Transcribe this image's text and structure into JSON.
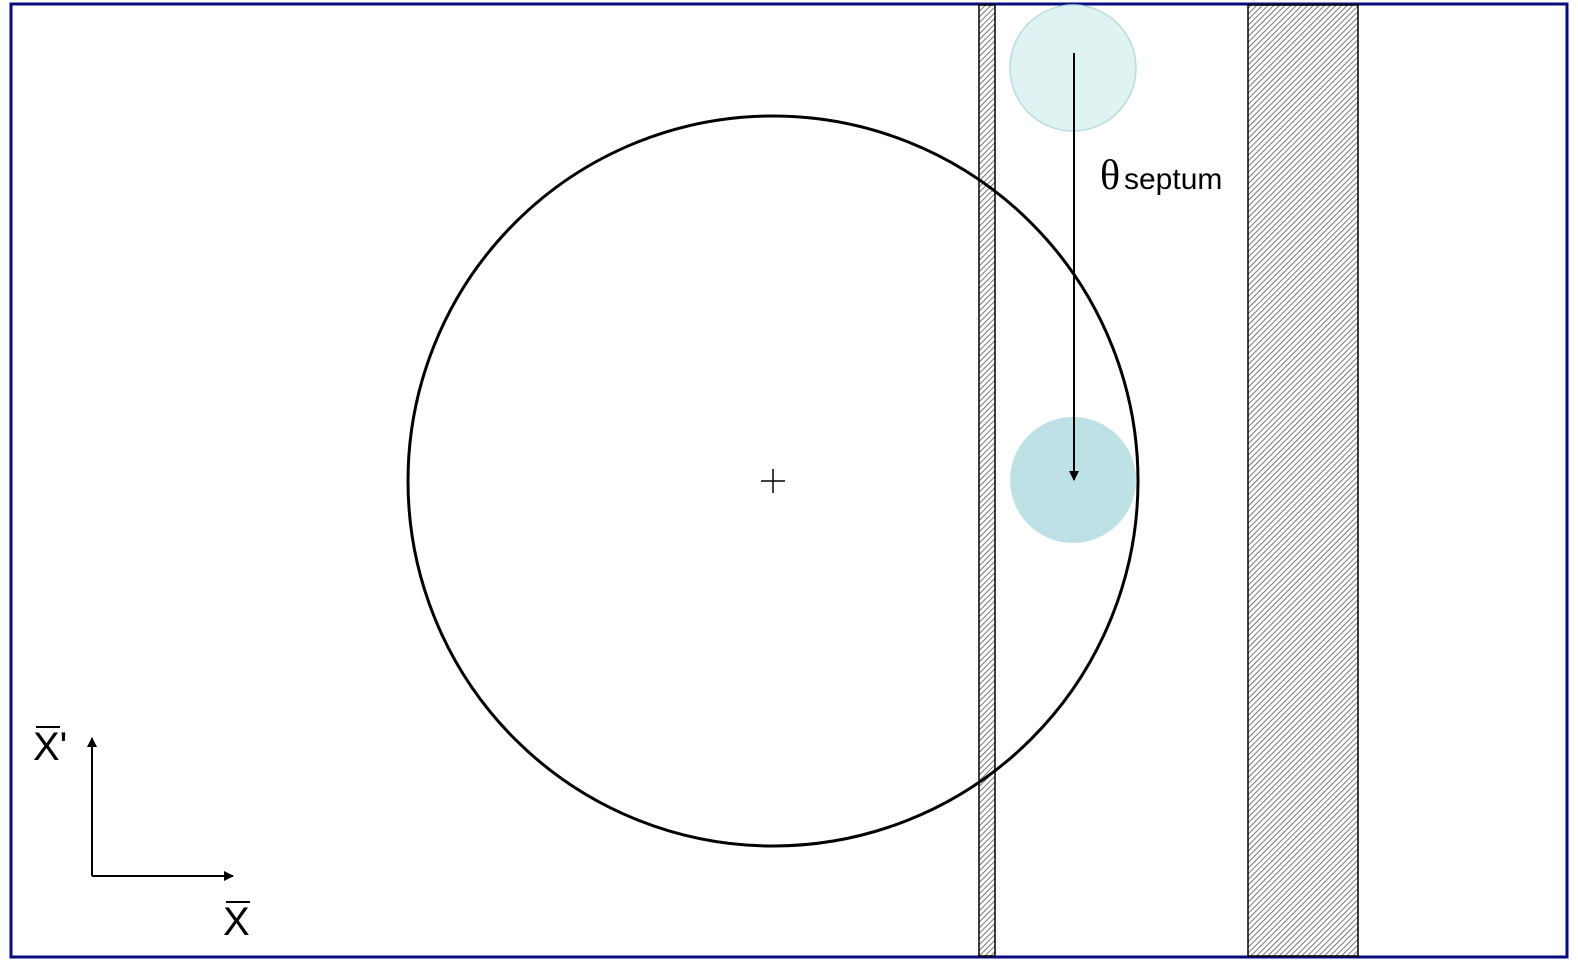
{
  "labels": {
    "theta": "θ",
    "septum": "septum",
    "x_prime": "X'",
    "x": "X"
  }
}
